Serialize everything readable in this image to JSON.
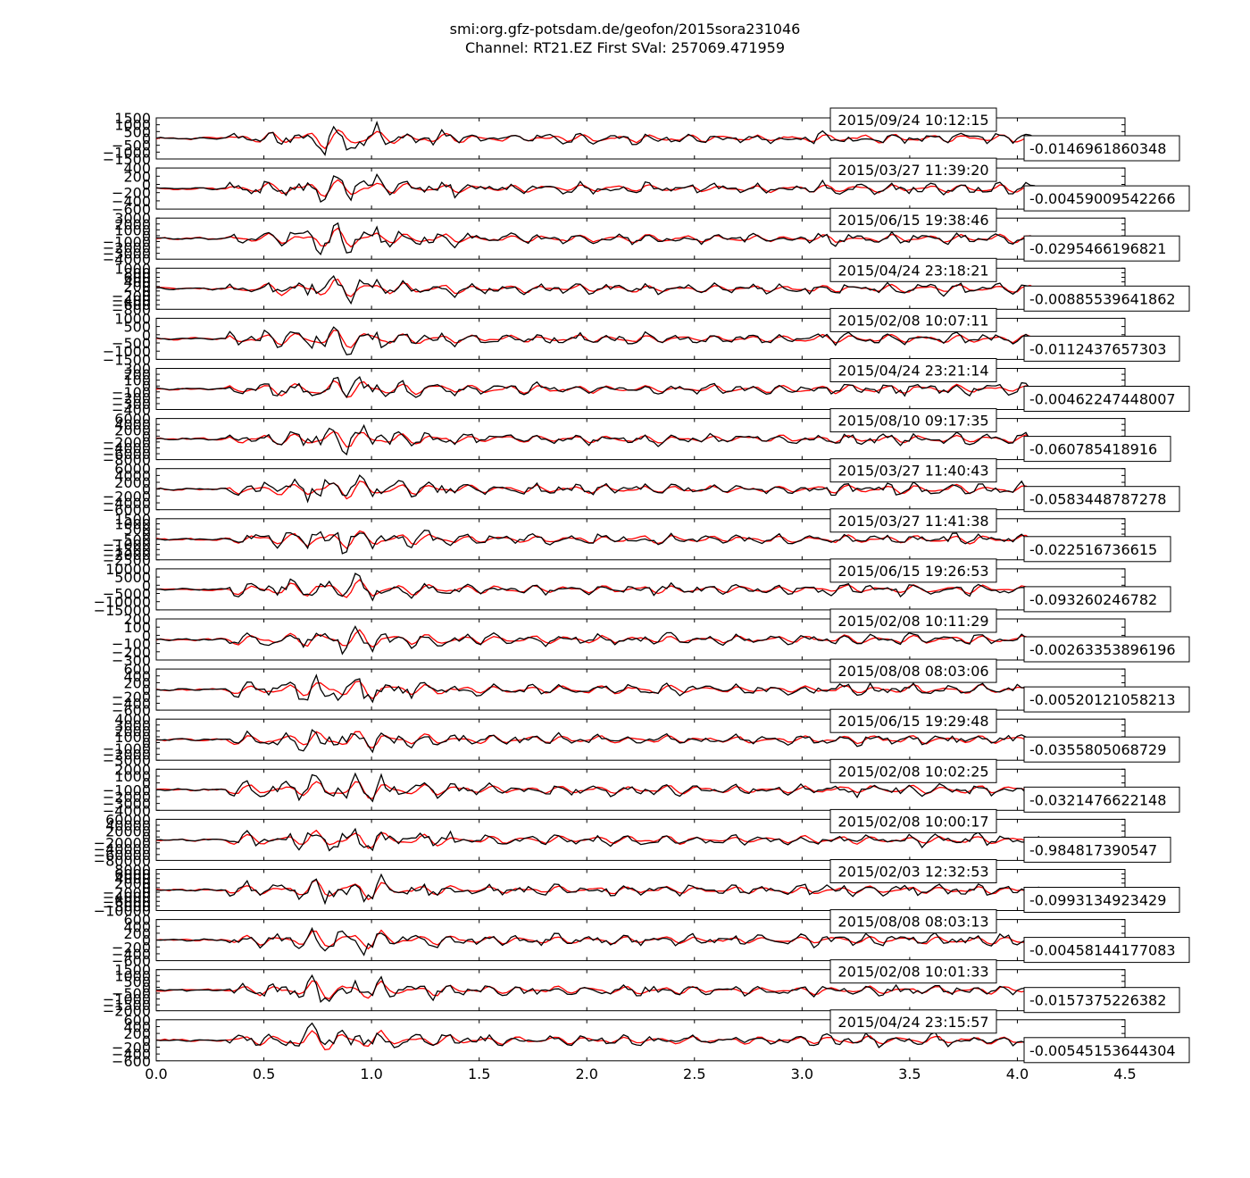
{
  "chart_data": {
    "type": "line",
    "title": "smi:org.gfz-potsdam.de/geofon/2015sora231046",
    "subtitle": "Channel: RT21.EZ First SVal: 257069.471959",
    "xlim": [
      0.0,
      4.5
    ],
    "xticks": [
      "0.0",
      "0.5",
      "1.0",
      "1.5",
      "2.0",
      "2.5",
      "3.0",
      "3.5",
      "4.0",
      "4.5"
    ],
    "grid": false,
    "colors": {
      "reference": "#000000",
      "template": "#ff0000"
    },
    "panels": [
      {
        "date": "2015/09/24 10:12:15",
        "correlation": "-0.0146961860348",
        "yticks": [
          "1500",
          "1000",
          "500",
          "0",
          "−500",
          "−1000",
          "−1500"
        ],
        "amp": 1500
      },
      {
        "date": "2015/03/27 11:39:20",
        "correlation": "-0.00459009542266",
        "yticks": [
          "400",
          "200",
          "0",
          "−200",
          "−400",
          "−600"
        ],
        "amp": 500
      },
      {
        "date": "2015/06/15 19:38:46",
        "correlation": "-0.0295466196821",
        "yticks": [
          "3000",
          "2000",
          "1000",
          "0",
          "−1000",
          "−2000",
          "−3000",
          "−4000"
        ],
        "amp": 3500
      },
      {
        "date": "2015/04/24 23:18:21",
        "correlation": "-0.00885539641862",
        "yticks": [
          "1000",
          "800",
          "600",
          "400",
          "200",
          "0",
          "−200",
          "−400",
          "−600",
          "−800"
        ],
        "amp": 900
      },
      {
        "date": "2015/02/08 10:07:11",
        "correlation": "-0.0112437657303",
        "yticks": [
          "1000",
          "500",
          "0",
          "−500",
          "−1000",
          "−1500"
        ],
        "amp": 1250
      },
      {
        "date": "2015/04/24 23:21:14",
        "correlation": "-0.00462247448007",
        "yticks": [
          "300",
          "200",
          "100",
          "0",
          "−100",
          "−200",
          "−300",
          "−400"
        ],
        "amp": 350
      },
      {
        "date": "2015/08/10 09:17:35",
        "correlation": "-0.060785418916",
        "yticks": [
          "6000",
          "4000",
          "2000",
          "0",
          "−2000",
          "−4000",
          "−6000",
          "−8000"
        ],
        "amp": 7000
      },
      {
        "date": "2015/03/27 11:40:43",
        "correlation": "-0.0583448787278",
        "yticks": [
          "6000",
          "4000",
          "2000",
          "0",
          "−2000",
          "−4000",
          "−6000"
        ],
        "amp": 6000
      },
      {
        "date": "2015/03/27 11:41:38",
        "correlation": "-0.022516736615",
        "yticks": [
          "1500",
          "1000",
          "500",
          "0",
          "−500",
          "−1000",
          "−1500",
          "−2000",
          "−2500"
        ],
        "amp": 2000
      },
      {
        "date": "2015/06/15 19:26:53",
        "correlation": "-0.093260246782",
        "yticks": [
          "10000",
          "5000",
          "0",
          "−5000",
          "−10000",
          "−15000"
        ],
        "amp": 12500
      },
      {
        "date": "2015/02/08 10:11:29",
        "correlation": "-0.00263353896196",
        "yticks": [
          "200",
          "100",
          "0",
          "−100",
          "−200",
          "−300"
        ],
        "amp": 250
      },
      {
        "date": "2015/08/08 08:03:06",
        "correlation": "-0.00520121058213",
        "yticks": [
          "600",
          "400",
          "200",
          "0",
          "−200",
          "−400",
          "−600"
        ],
        "amp": 600
      },
      {
        "date": "2015/06/15 19:29:48",
        "correlation": "-0.0355805068729",
        "yticks": [
          "4000",
          "3000",
          "2000",
          "1000",
          "0",
          "−1000",
          "−2000",
          "−3000"
        ],
        "amp": 3500
      },
      {
        "date": "2015/02/08 10:02:25",
        "correlation": "-0.0321476622148",
        "yticks": [
          "2000",
          "1000",
          "0",
          "−1000",
          "−2000",
          "−3000",
          "−4000"
        ],
        "amp": 3000
      },
      {
        "date": "2015/02/08 10:00:17",
        "correlation": "-0.984817390547",
        "yticks": [
          "60000",
          "40000",
          "20000",
          "0",
          "−20000",
          "−40000",
          "−60000",
          "−80000"
        ],
        "amp": 70000
      },
      {
        "date": "2015/02/03 12:32:53",
        "correlation": "-0.0993134923429",
        "yticks": [
          "8000",
          "6000",
          "4000",
          "2000",
          "0",
          "−2000",
          "−4000",
          "−6000",
          "−8000",
          "−10000"
        ],
        "amp": 9000
      },
      {
        "date": "2015/08/08 08:03:13",
        "correlation": "-0.00458144177083",
        "yticks": [
          "600",
          "400",
          "200",
          "0",
          "−200",
          "−400",
          "−600"
        ],
        "amp": 600
      },
      {
        "date": "2015/02/08 10:01:33",
        "correlation": "-0.0157375226382",
        "yticks": [
          "1500",
          "1000",
          "500",
          "0",
          "−500",
          "−1000",
          "−1500",
          "−2000"
        ],
        "amp": 1800
      },
      {
        "date": "2015/04/24 23:15:57",
        "correlation": "-0.00545153644304",
        "yticks": [
          "600",
          "400",
          "200",
          "0",
          "−200",
          "−400",
          "−600"
        ],
        "amp": 600
      }
    ]
  }
}
